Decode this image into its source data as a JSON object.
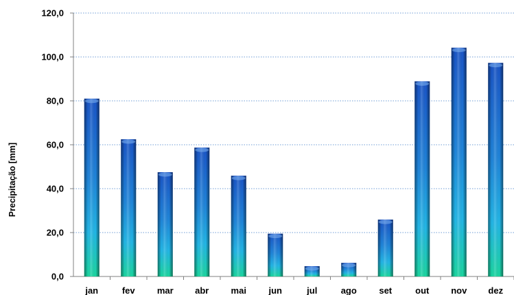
{
  "chart_data": {
    "type": "bar",
    "title": "",
    "xlabel": "",
    "ylabel": "Precipitação [mm]",
    "categories": [
      "jan",
      "fev",
      "mar",
      "abr",
      "mai",
      "jun",
      "jul",
      "ago",
      "set",
      "out",
      "nov",
      "dez"
    ],
    "values": [
      81.0,
      62.5,
      47.5,
      58.7,
      45.9,
      19.5,
      4.7,
      6.2,
      25.9,
      88.9,
      104.2,
      97.3
    ],
    "ylim": [
      0,
      120
    ],
    "yticks": [
      0,
      20,
      40,
      60,
      80,
      100,
      120
    ],
    "ytick_labels": [
      "0,0",
      "20,0",
      "40,0",
      "60,0",
      "80,0",
      "100,0",
      "120,0"
    ],
    "grid": "horizontal dotted",
    "legend": "none",
    "bar_colors": {
      "top": "#1a5fcf",
      "middle": "#22a2e6",
      "bottom": "#1cd6a4"
    },
    "grid_color": "#6f9cd6"
  }
}
